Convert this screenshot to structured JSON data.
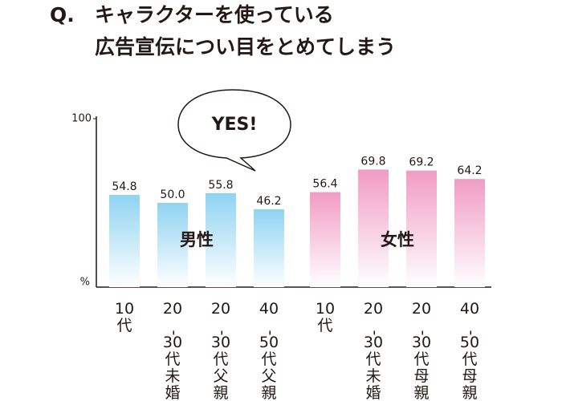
{
  "chart_data": {
    "type": "bar",
    "title_prefix": "Q.",
    "title": [
      "キャラクターを使っている",
      "広告宣伝につい目をとめてしまう"
    ],
    "annotation": "YES!",
    "y_unit": "%",
    "ylim": [
      0,
      100
    ],
    "yticks": [
      100
    ],
    "series": [
      {
        "name": "男性",
        "color": "#8fd3f2",
        "categories": [
          "10代",
          "20-30代未婚",
          "20-30代父親",
          "40-50代父親"
        ],
        "values": [
          54.8,
          50.0,
          55.8,
          46.2
        ],
        "value_labels": [
          "54.8",
          "50.0",
          "55.8",
          "46.2"
        ]
      },
      {
        "name": "女性",
        "color": "#f19cc3",
        "categories": [
          "10代",
          "20-30代未婚",
          "20-30代母親",
          "40-50代母親"
        ],
        "values": [
          56.4,
          69.8,
          69.2,
          64.2
        ],
        "value_labels": [
          "56.4",
          "69.8",
          "69.2",
          "64.2"
        ]
      }
    ]
  }
}
